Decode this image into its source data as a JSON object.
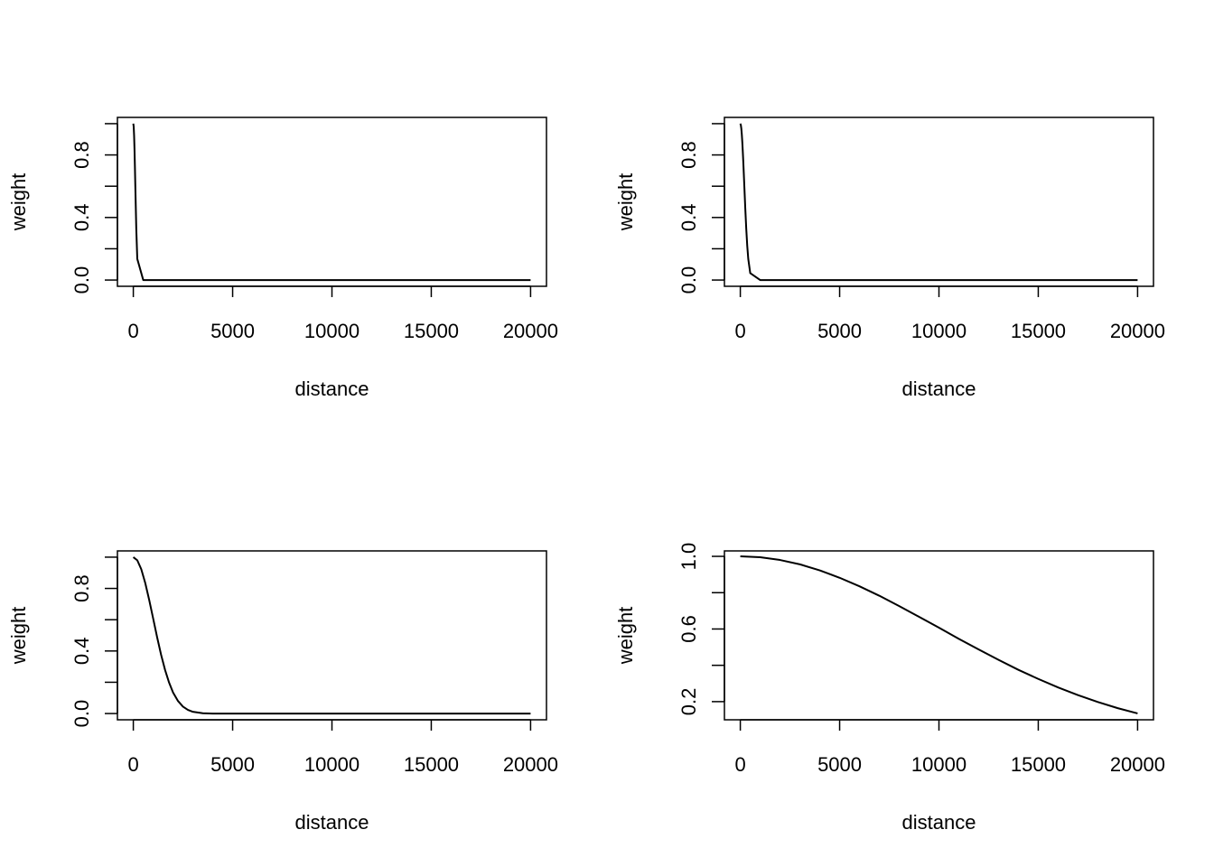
{
  "chart_data": [
    {
      "type": "line",
      "xlabel": "distance",
      "ylabel": "weight",
      "xlim": [
        -800,
        20800
      ],
      "ylim": [
        -0.04,
        1.04
      ],
      "xticks": [
        0,
        5000,
        10000,
        15000,
        20000
      ],
      "xtick_labels": [
        "0",
        "5000",
        "10000",
        "15000",
        "20000"
      ],
      "yticks": [
        0.0,
        0.2,
        0.4,
        0.6,
        0.8,
        1.0
      ],
      "ytick_labels": [
        "0.0",
        "",
        "0.4",
        "",
        "0.8",
        ""
      ],
      "series": [
        {
          "x": [
            0,
            20,
            40,
            60,
            80,
            100,
            150,
            200,
            500,
            1000,
            5000,
            10000,
            15000,
            20000
          ],
          "values": [
            1.0,
            0.98,
            0.923,
            0.835,
            0.726,
            0.607,
            0.325,
            0.135,
            0.0,
            0.0,
            0.0,
            0.0,
            0.0,
            0.0
          ]
        }
      ]
    },
    {
      "type": "line",
      "xlabel": "distance",
      "ylabel": "weight",
      "xlim": [
        -800,
        20800
      ],
      "ylim": [
        -0.04,
        1.04
      ],
      "xticks": [
        0,
        5000,
        10000,
        15000,
        20000
      ],
      "xtick_labels": [
        "0",
        "5000",
        "10000",
        "15000",
        "20000"
      ],
      "yticks": [
        0.0,
        0.2,
        0.4,
        0.6,
        0.8,
        1.0
      ],
      "ytick_labels": [
        "0.0",
        "",
        "0.4",
        "",
        "0.8",
        ""
      ],
      "series": [
        {
          "x": [
            0,
            25,
            50,
            75,
            100,
            125,
            150,
            175,
            200,
            250,
            300,
            350,
            400,
            500,
            1000,
            5000,
            10000,
            15000,
            20000
          ],
          "values": [
            1.0,
            0.992,
            0.969,
            0.932,
            0.882,
            0.822,
            0.755,
            0.682,
            0.607,
            0.458,
            0.325,
            0.216,
            0.135,
            0.044,
            0.0,
            0.0,
            0.0,
            0.0,
            0.0
          ]
        }
      ]
    },
    {
      "type": "line",
      "xlabel": "distance",
      "ylabel": "weight",
      "xlim": [
        -800,
        20800
      ],
      "ylim": [
        -0.04,
        1.04
      ],
      "xticks": [
        0,
        5000,
        10000,
        15000,
        20000
      ],
      "xtick_labels": [
        "0",
        "5000",
        "10000",
        "15000",
        "20000"
      ],
      "yticks": [
        0.0,
        0.2,
        0.4,
        0.6,
        0.8,
        1.0
      ],
      "ytick_labels": [
        "0.0",
        "",
        "0.4",
        "",
        "0.8",
        ""
      ],
      "series": [
        {
          "x": [
            0,
            200,
            400,
            600,
            800,
            1000,
            1200,
            1400,
            1600,
            1800,
            2000,
            2250,
            2500,
            2750,
            3000,
            3500,
            4000,
            5000,
            10000,
            15000,
            20000
          ],
          "values": [
            1.0,
            0.98,
            0.923,
            0.835,
            0.726,
            0.607,
            0.487,
            0.375,
            0.278,
            0.198,
            0.135,
            0.08,
            0.044,
            0.023,
            0.011,
            0.002,
            0.0,
            0.0,
            0.0,
            0.0,
            0.0
          ]
        }
      ]
    },
    {
      "type": "line",
      "xlabel": "distance",
      "ylabel": "weight",
      "xlim": [
        -800,
        20800
      ],
      "ylim": [
        0.1,
        1.03
      ],
      "xticks": [
        0,
        5000,
        10000,
        15000,
        20000
      ],
      "xtick_labels": [
        "0",
        "5000",
        "10000",
        "15000",
        "20000"
      ],
      "yticks": [
        0.2,
        0.4,
        0.6,
        0.8,
        1.0
      ],
      "ytick_labels": [
        "0.2",
        "",
        "0.6",
        "",
        "1.0"
      ],
      "series": [
        {
          "x": [
            0,
            1000,
            2000,
            3000,
            4000,
            5000,
            6000,
            7000,
            8000,
            9000,
            10000,
            11000,
            12000,
            13000,
            14000,
            15000,
            16000,
            17000,
            18000,
            19000,
            20000
          ],
          "values": [
            1.0,
            0.995,
            0.98,
            0.956,
            0.923,
            0.882,
            0.835,
            0.783,
            0.726,
            0.667,
            0.607,
            0.546,
            0.487,
            0.43,
            0.375,
            0.325,
            0.278,
            0.236,
            0.198,
            0.164,
            0.135
          ]
        }
      ]
    }
  ]
}
